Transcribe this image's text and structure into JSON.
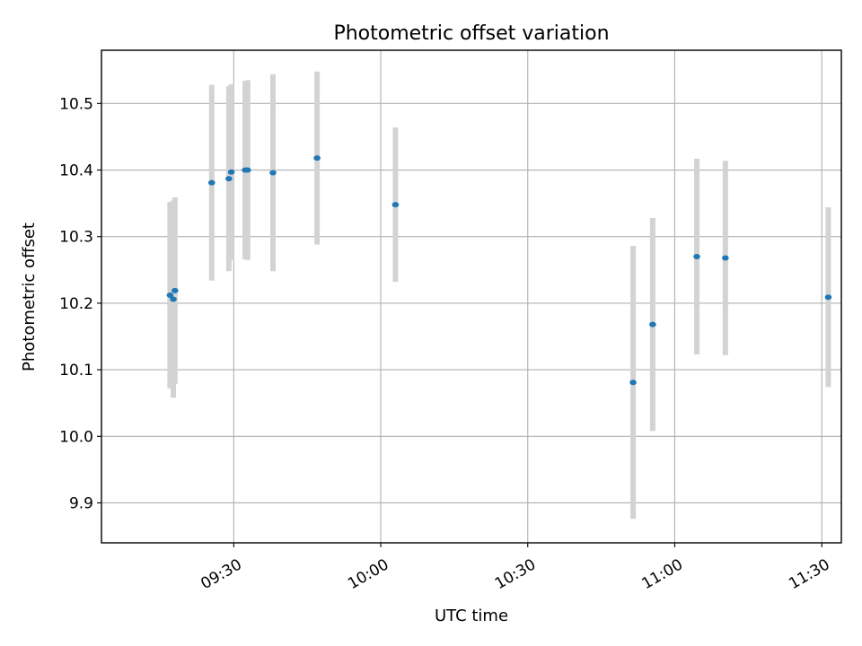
{
  "chart_data": {
    "type": "scatter",
    "title": "Photometric offset variation",
    "xlabel": "UTC time",
    "ylabel": "Photometric offset",
    "grid": true,
    "xlim": [
      "09:03",
      "11:34"
    ],
    "ylim": [
      9.84,
      10.58
    ],
    "x_ticks": [
      "09:30",
      "10:00",
      "10:30",
      "11:00",
      "11:30"
    ],
    "y_ticks": [
      "9.9",
      "10.0",
      "10.1",
      "10.2",
      "10.3",
      "10.4",
      "10.5"
    ],
    "colors": {
      "point": "#1f77b4",
      "errorbar": "#d3d3d3",
      "grid": "#b0b0b0"
    },
    "points": [
      {
        "time": "09:17:00",
        "value": 10.212,
        "err": 0.14
      },
      {
        "time": "09:17:40",
        "value": 10.206,
        "err": 0.148
      },
      {
        "time": "09:18:00",
        "value": 10.219,
        "err": 0.14
      },
      {
        "time": "09:25:30",
        "value": 10.381,
        "err": 0.147
      },
      {
        "time": "09:29:00",
        "value": 10.387,
        "err": 0.139
      },
      {
        "time": "09:29:30",
        "value": 10.397,
        "err": 0.132
      },
      {
        "time": "09:32:20",
        "value": 10.4,
        "err": 0.134
      },
      {
        "time": "09:32:50",
        "value": 10.4,
        "err": 0.135
      },
      {
        "time": "09:38:00",
        "value": 10.396,
        "err": 0.148
      },
      {
        "time": "09:47:00",
        "value": 10.418,
        "err": 0.13
      },
      {
        "time": "10:03:00",
        "value": 10.348,
        "err": 0.116
      },
      {
        "time": "10:51:30",
        "value": 10.081,
        "err": 0.205
      },
      {
        "time": "10:55:30",
        "value": 10.168,
        "err": 0.16
      },
      {
        "time": "11:04:30",
        "value": 10.27,
        "err": 0.147
      },
      {
        "time": "11:10:20",
        "value": 10.268,
        "err": 0.146
      },
      {
        "time": "11:31:20",
        "value": 10.209,
        "err": 0.135
      }
    ]
  }
}
